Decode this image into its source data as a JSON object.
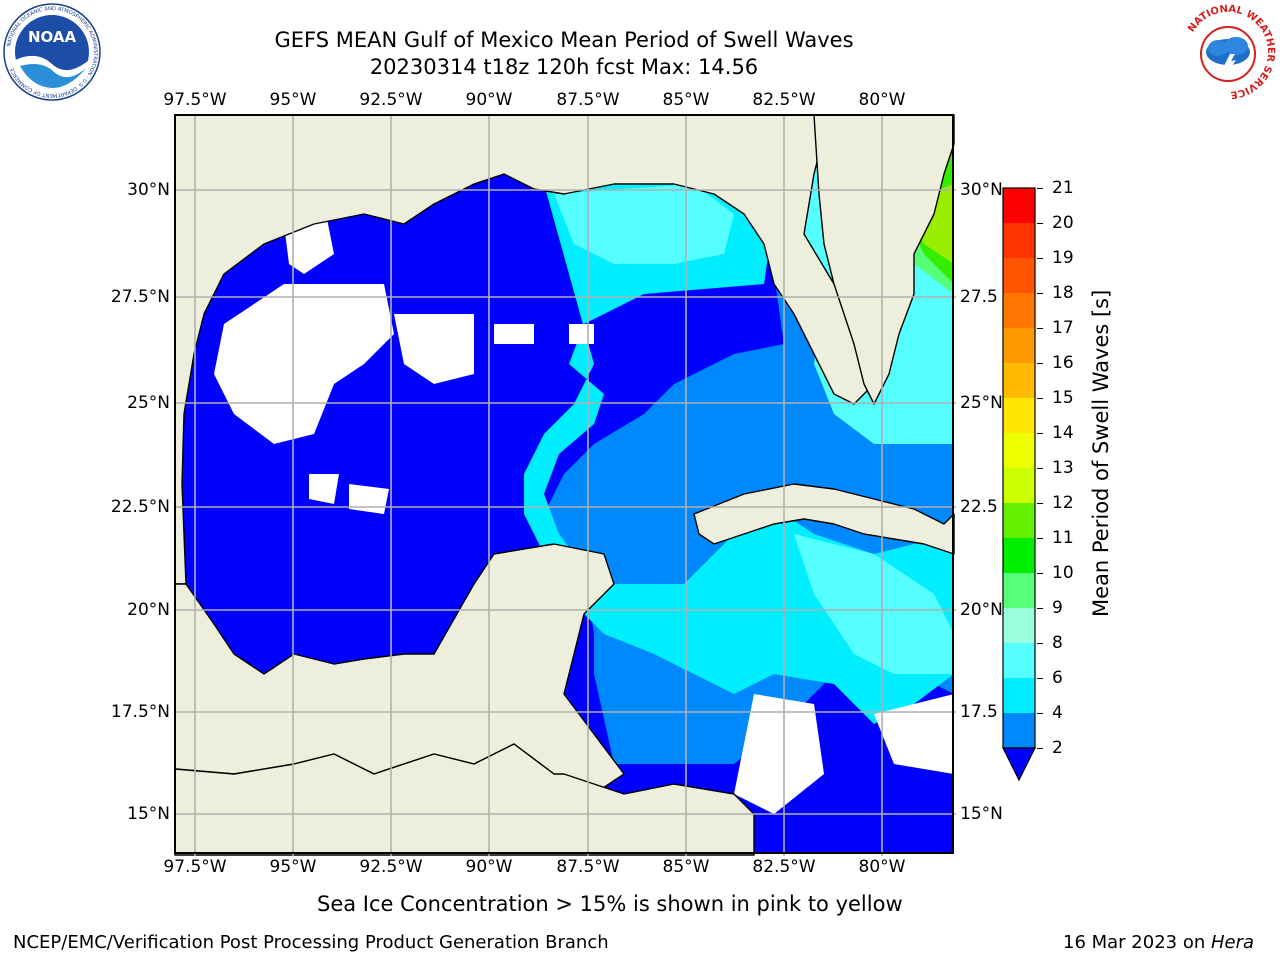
{
  "header": {
    "title_line1": "GEFS MEAN Gulf of Mexico Mean Period of Swell Waves",
    "title_line2": "20230314 t18z 120h fcst   Max: 14.56"
  },
  "logos": {
    "noaa_text": "NOAA",
    "noaa_ring_text": "NATIONAL OCEANIC AND ATMOSPHERIC ADMINISTRATION · U.S. DEPARTMENT OF COMMERCE",
    "nws_ring_text": "NATIONAL WEATHER SERVICE"
  },
  "map": {
    "lon_labels": [
      "97.5°W",
      "95°W",
      "92.5°W",
      "90°W",
      "87.5°W",
      "85°W",
      "82.5°W",
      "80°W"
    ],
    "lat_labels_left": [
      "30°N",
      "27.5°N",
      "25°N",
      "22.5°N",
      "20°N",
      "17.5°N",
      "15°N"
    ],
    "lat_labels_right": [
      "30°N",
      "27.5",
      "25°N",
      "22.5",
      "20°N",
      "17.5",
      "15°N"
    ],
    "colors": {
      "land": "#eeeedd",
      "grid": "#b0b0b0",
      "coast": "#000000"
    }
  },
  "colorbar": {
    "label": "Mean Period of Swell Waves [s]",
    "ticks": [
      "21",
      "20",
      "19",
      "18",
      "17",
      "16",
      "15",
      "14",
      "13",
      "12",
      "11",
      "10",
      "9",
      "8",
      "6",
      "4",
      "2"
    ],
    "colors": [
      "#ff0000",
      "#ff3300",
      "#ff5500",
      "#ff7700",
      "#ff9900",
      "#ffbb00",
      "#ffe600",
      "#eeff00",
      "#ccff00",
      "#66ee00",
      "#00ee00",
      "#55ff77",
      "#99ffdd",
      "#55ffff",
      "#00eeff",
      "#0088ff",
      "#0000ff"
    ]
  },
  "note": "Sea Ice Concentration > 15% is shown in pink to yellow",
  "footer": {
    "left": "NCEP/EMC/Verification Post Processing Product Generation Branch",
    "date": "16 Mar 2023 on ",
    "machine": "Hera"
  }
}
